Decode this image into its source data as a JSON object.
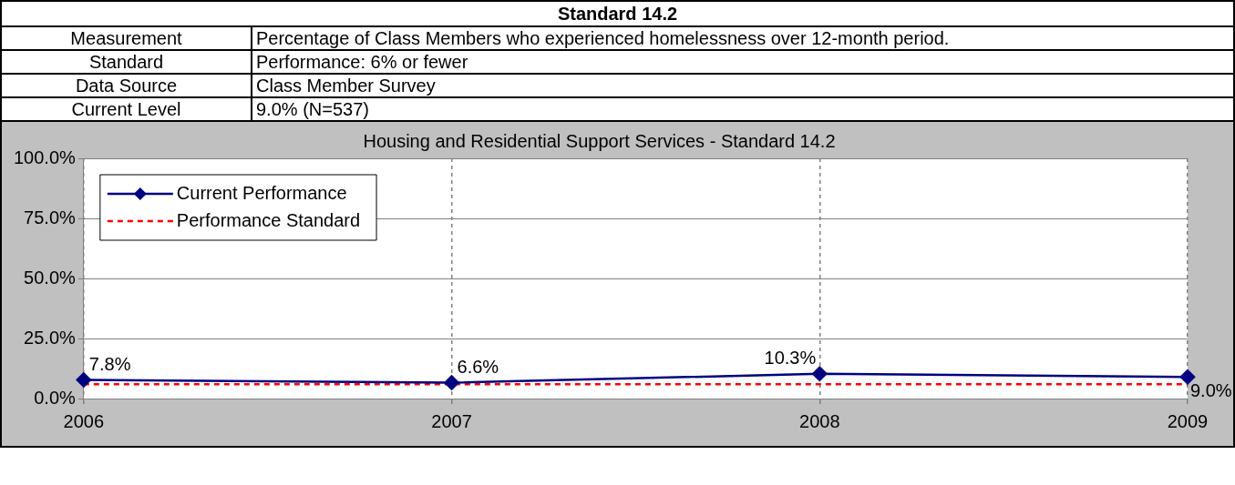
{
  "chart_data": [
    {
      "type": "other",
      "title": "Standard 14.2",
      "annotations": [
        "Measurement",
        "Percentage of Class Members who experienced homelessness over 12-month period.",
        "Standard",
        "Performance: 6% or fewer",
        "Data Source",
        "Class Member Survey",
        "Current Level",
        "9.0% (N=537)"
      ]
    },
    {
      "type": "line",
      "title": "Housing and Residential Support Services - Standard 14.2",
      "categories": [
        "2006",
        "2007",
        "2008",
        "2009"
      ],
      "series": [
        {
          "name": "Current Performance",
          "color": "#000080",
          "values": [
            7.8,
            6.6,
            10.3,
            9.0
          ],
          "marker": "diamond",
          "line_style": "solid",
          "value_labels": [
            "7.8%",
            "6.6%",
            "10.3%",
            "9.0%"
          ]
        },
        {
          "name": "Performance Standard",
          "color": "#ff0000",
          "values": [
            6,
            6,
            6,
            6
          ],
          "marker": "none",
          "line_style": "dashed"
        }
      ],
      "ylim": [
        0,
        100
      ],
      "yticks": [
        {
          "value": 0,
          "label": "0.0%"
        },
        {
          "value": 25,
          "label": "25.0%"
        },
        {
          "value": 50,
          "label": "50.0%"
        },
        {
          "value": 75,
          "label": "75.0%"
        },
        {
          "value": 100,
          "label": "100.0%"
        }
      ],
      "grid": true,
      "legend": "top left"
    }
  ]
}
